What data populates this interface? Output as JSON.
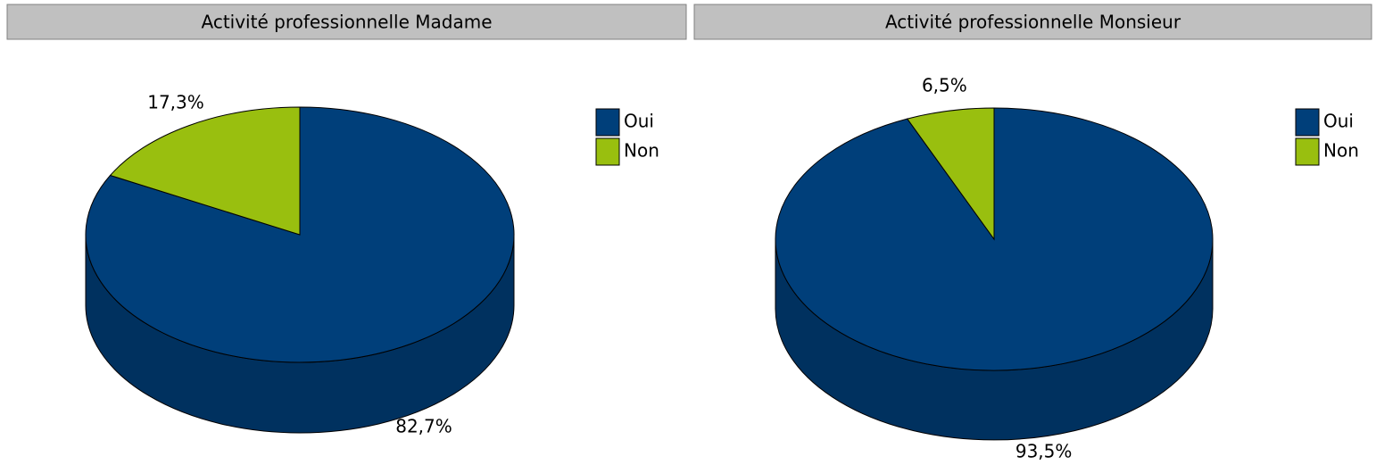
{
  "chart_data": [
    {
      "type": "pie",
      "title": "Activité professionnelle Madame",
      "categories": [
        "Oui",
        "Non"
      ],
      "values": [
        82.7,
        17.3
      ],
      "value_labels": [
        "82,7%",
        "17,3%"
      ],
      "colors": [
        "#003f7a",
        "#99bf0f"
      ],
      "legend": "right"
    },
    {
      "type": "pie",
      "title": "Activité professionnelle Monsieur",
      "categories": [
        "Oui",
        "Non"
      ],
      "values": [
        93.5,
        6.5
      ],
      "value_labels": [
        "93,5%",
        "6,5%"
      ],
      "colors": [
        "#003f7a",
        "#99bf0f"
      ],
      "legend": "right"
    }
  ]
}
